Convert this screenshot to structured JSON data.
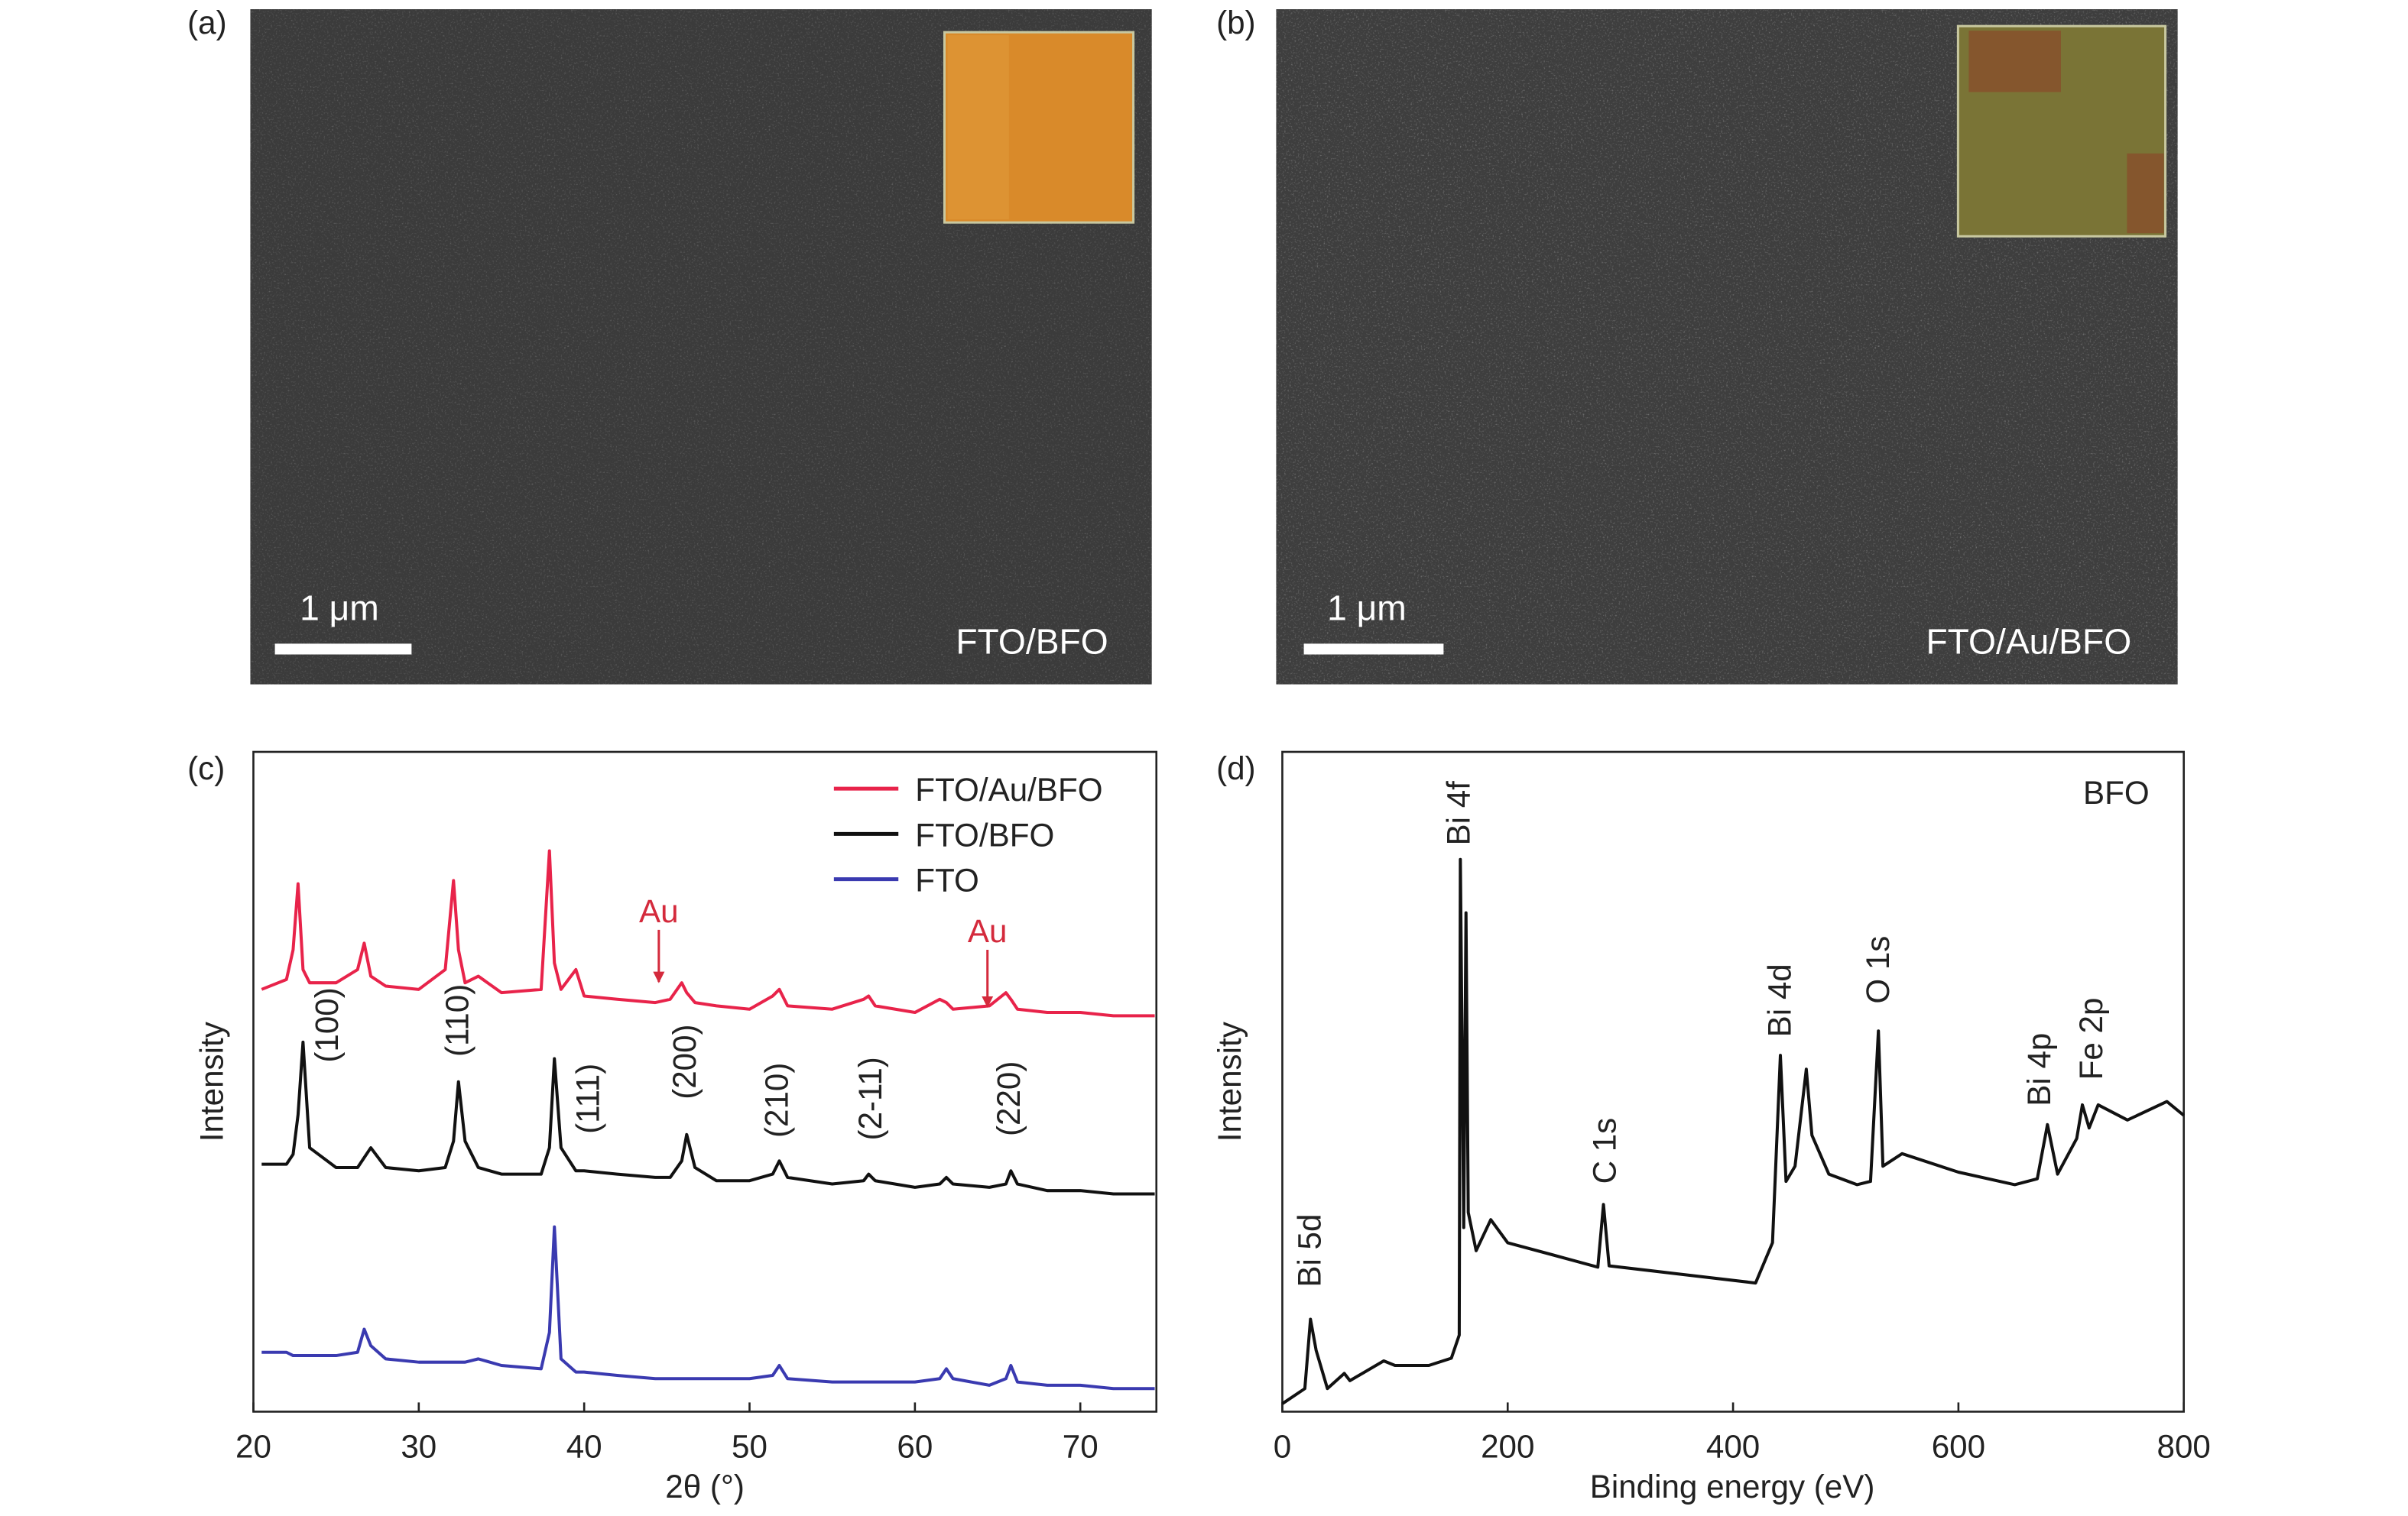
{
  "images": [
    {
      "label": "(a)",
      "scale_bar": "1 μm",
      "sample": "FTO/BFO"
    },
    {
      "label": "(b)",
      "scale_bar": "1 μm",
      "sample": "FTO/Au/BFO"
    }
  ],
  "chart_data": [
    {
      "type": "line",
      "panel": "(c)",
      "x_label": "2θ (°)",
      "y_label": "Intensity",
      "xlim": [
        20,
        74.6
      ],
      "xticks": [
        20,
        30,
        40,
        50,
        60,
        70
      ],
      "ylim": [
        0,
        100
      ],
      "x": [
        20.5,
        22,
        22.4,
        22.7,
        23.0,
        23.4,
        25,
        26.3,
        26.7,
        27.1,
        28,
        30,
        31.6,
        32.1,
        32.4,
        32.8,
        33.6,
        35,
        37.4,
        37.9,
        38.2,
        38.6,
        39.5,
        40,
        42,
        44.3,
        45.2,
        45.9,
        46.2,
        46.7,
        48,
        50,
        51.4,
        51.8,
        52.3,
        55,
        56.9,
        57.2,
        57.6,
        60,
        61.5,
        61.9,
        62.3,
        64.5,
        65.5,
        65.8,
        66.2,
        68,
        70,
        72,
        74.5
      ],
      "series": [
        {
          "name": "FTO/Au/BFO",
          "color": "#e8234a",
          "values": [
            64,
            65.5,
            70,
            80,
            67,
            65,
            65,
            67,
            71,
            66,
            64.5,
            64,
            67,
            80.5,
            70,
            65,
            66,
            63.5,
            64,
            85,
            68,
            64,
            67,
            63,
            62.5,
            62,
            62.5,
            65,
            63.5,
            62,
            61.5,
            61,
            63,
            64,
            61.5,
            61,
            62.5,
            63,
            61.5,
            60.5,
            62.5,
            62,
            61,
            61.5,
            63.5,
            62.5,
            61,
            60.5,
            60.5,
            60,
            60
          ]
        },
        {
          "name": "FTO/BFO",
          "color": "#111111",
          "values": [
            37.5,
            37.5,
            39,
            45,
            56,
            40,
            37,
            37,
            38.5,
            40,
            37,
            36.5,
            37,
            41,
            50,
            41,
            37,
            36,
            36,
            40,
            53.5,
            40,
            36.5,
            36.5,
            36,
            35.5,
            35.5,
            38,
            42,
            37,
            35,
            35,
            36,
            38,
            35.5,
            34.5,
            35,
            36,
            35,
            34,
            34.5,
            35.5,
            34.5,
            34,
            34.5,
            36.5,
            34.5,
            33.5,
            33.5,
            33,
            33
          ]
        },
        {
          "name": "FTO",
          "color": "#3a3ab0",
          "values": [
            9,
            9,
            8.5,
            8.5,
            8.5,
            8.5,
            8.5,
            9,
            12.5,
            10,
            8,
            7.5,
            7.5,
            7.5,
            7.5,
            7.5,
            8,
            7,
            6.5,
            12,
            28,
            8,
            6,
            6,
            5.5,
            5,
            5,
            5,
            5,
            5,
            5,
            5,
            5.5,
            7,
            5,
            4.5,
            4.5,
            4.5,
            4.5,
            4.5,
            5,
            6.5,
            5,
            4,
            5,
            7,
            4.5,
            4,
            4,
            3.5,
            3.5
          ]
        }
      ],
      "annotations": [
        "(100)",
        "(110)",
        "(111)",
        "(200)",
        "(210)",
        "(2-11)",
        "(220)",
        "Au",
        "Au"
      ]
    },
    {
      "type": "line",
      "panel": "(d)",
      "x_label": "Binding energy (eV)",
      "y_label": "Intensity",
      "xlim": [
        0,
        800
      ],
      "xticks": [
        0,
        200,
        400,
        600,
        800
      ],
      "ylim": [
        0,
        100
      ],
      "x": [
        0,
        20,
        25,
        30,
        40,
        55,
        60,
        90,
        100,
        130,
        150,
        157,
        158,
        161,
        163,
        165,
        172,
        185,
        200,
        250,
        280,
        285,
        290,
        350,
        420,
        435,
        442,
        447,
        455,
        465,
        470,
        485,
        510,
        522,
        529,
        533,
        550,
        600,
        650,
        670,
        679,
        688,
        705,
        710,
        716,
        724,
        750,
        785,
        800
      ],
      "series": [
        {
          "name": "BFO",
          "color": "#111111",
          "values": [
            1.2,
            3.5,
            14,
            9.3,
            3.5,
            5.8,
            4.7,
            7.7,
            7,
            7,
            8.1,
            11.6,
            83.7,
            27.9,
            75.6,
            30.2,
            24.4,
            29.1,
            25.6,
            23.3,
            21.9,
            31.4,
            22.1,
            20.9,
            19.5,
            25.6,
            54,
            34.9,
            37.2,
            51.9,
            41.9,
            36,
            34.4,
            34.9,
            57.7,
            37.2,
            39.1,
            36.3,
            34.4,
            35.3,
            43.5,
            36,
            41.4,
            46.5,
            43,
            46.5,
            44.2,
            47,
            44.9
          ]
        }
      ],
      "annotations": [
        "Bi 5d",
        "Bi 4f",
        "C 1s",
        "Bi 4d",
        "O 1s",
        "Bi 4p",
        "Fe 2p"
      ]
    }
  ]
}
